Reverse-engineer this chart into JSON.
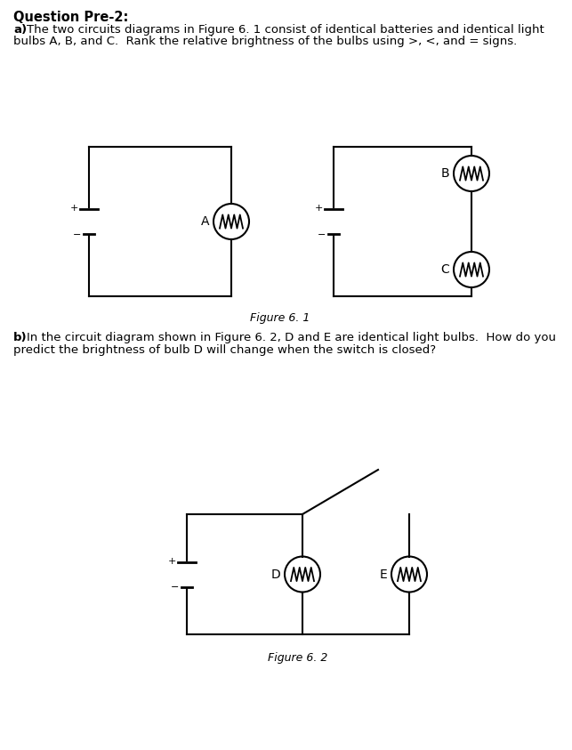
{
  "title": "Question Pre-2:",
  "text_a_bold": "a)",
  "text_a_normal": "  The two circuits diagrams in Figure 6. 1 consist of identical batteries and identical light\n   bulbs A, B, and C.  Rank the relative brightness of the bulbs using >, <, and = signs.",
  "text_b_bold": "b)",
  "text_b_normal": "  In the circuit diagram shown in Figure 6. 2, D and E are identical light bulbs.  How do you\n   predict the brightness of bulb D will change when the switch is closed?",
  "fig1_label": "Figure 6. 1",
  "fig2_label": "Figure 6. 2",
  "bg_color": "#ffffff",
  "line_color": "#000000",
  "font_size_title": 10.5,
  "font_size_text": 9.5,
  "font_size_fig_label": 9
}
